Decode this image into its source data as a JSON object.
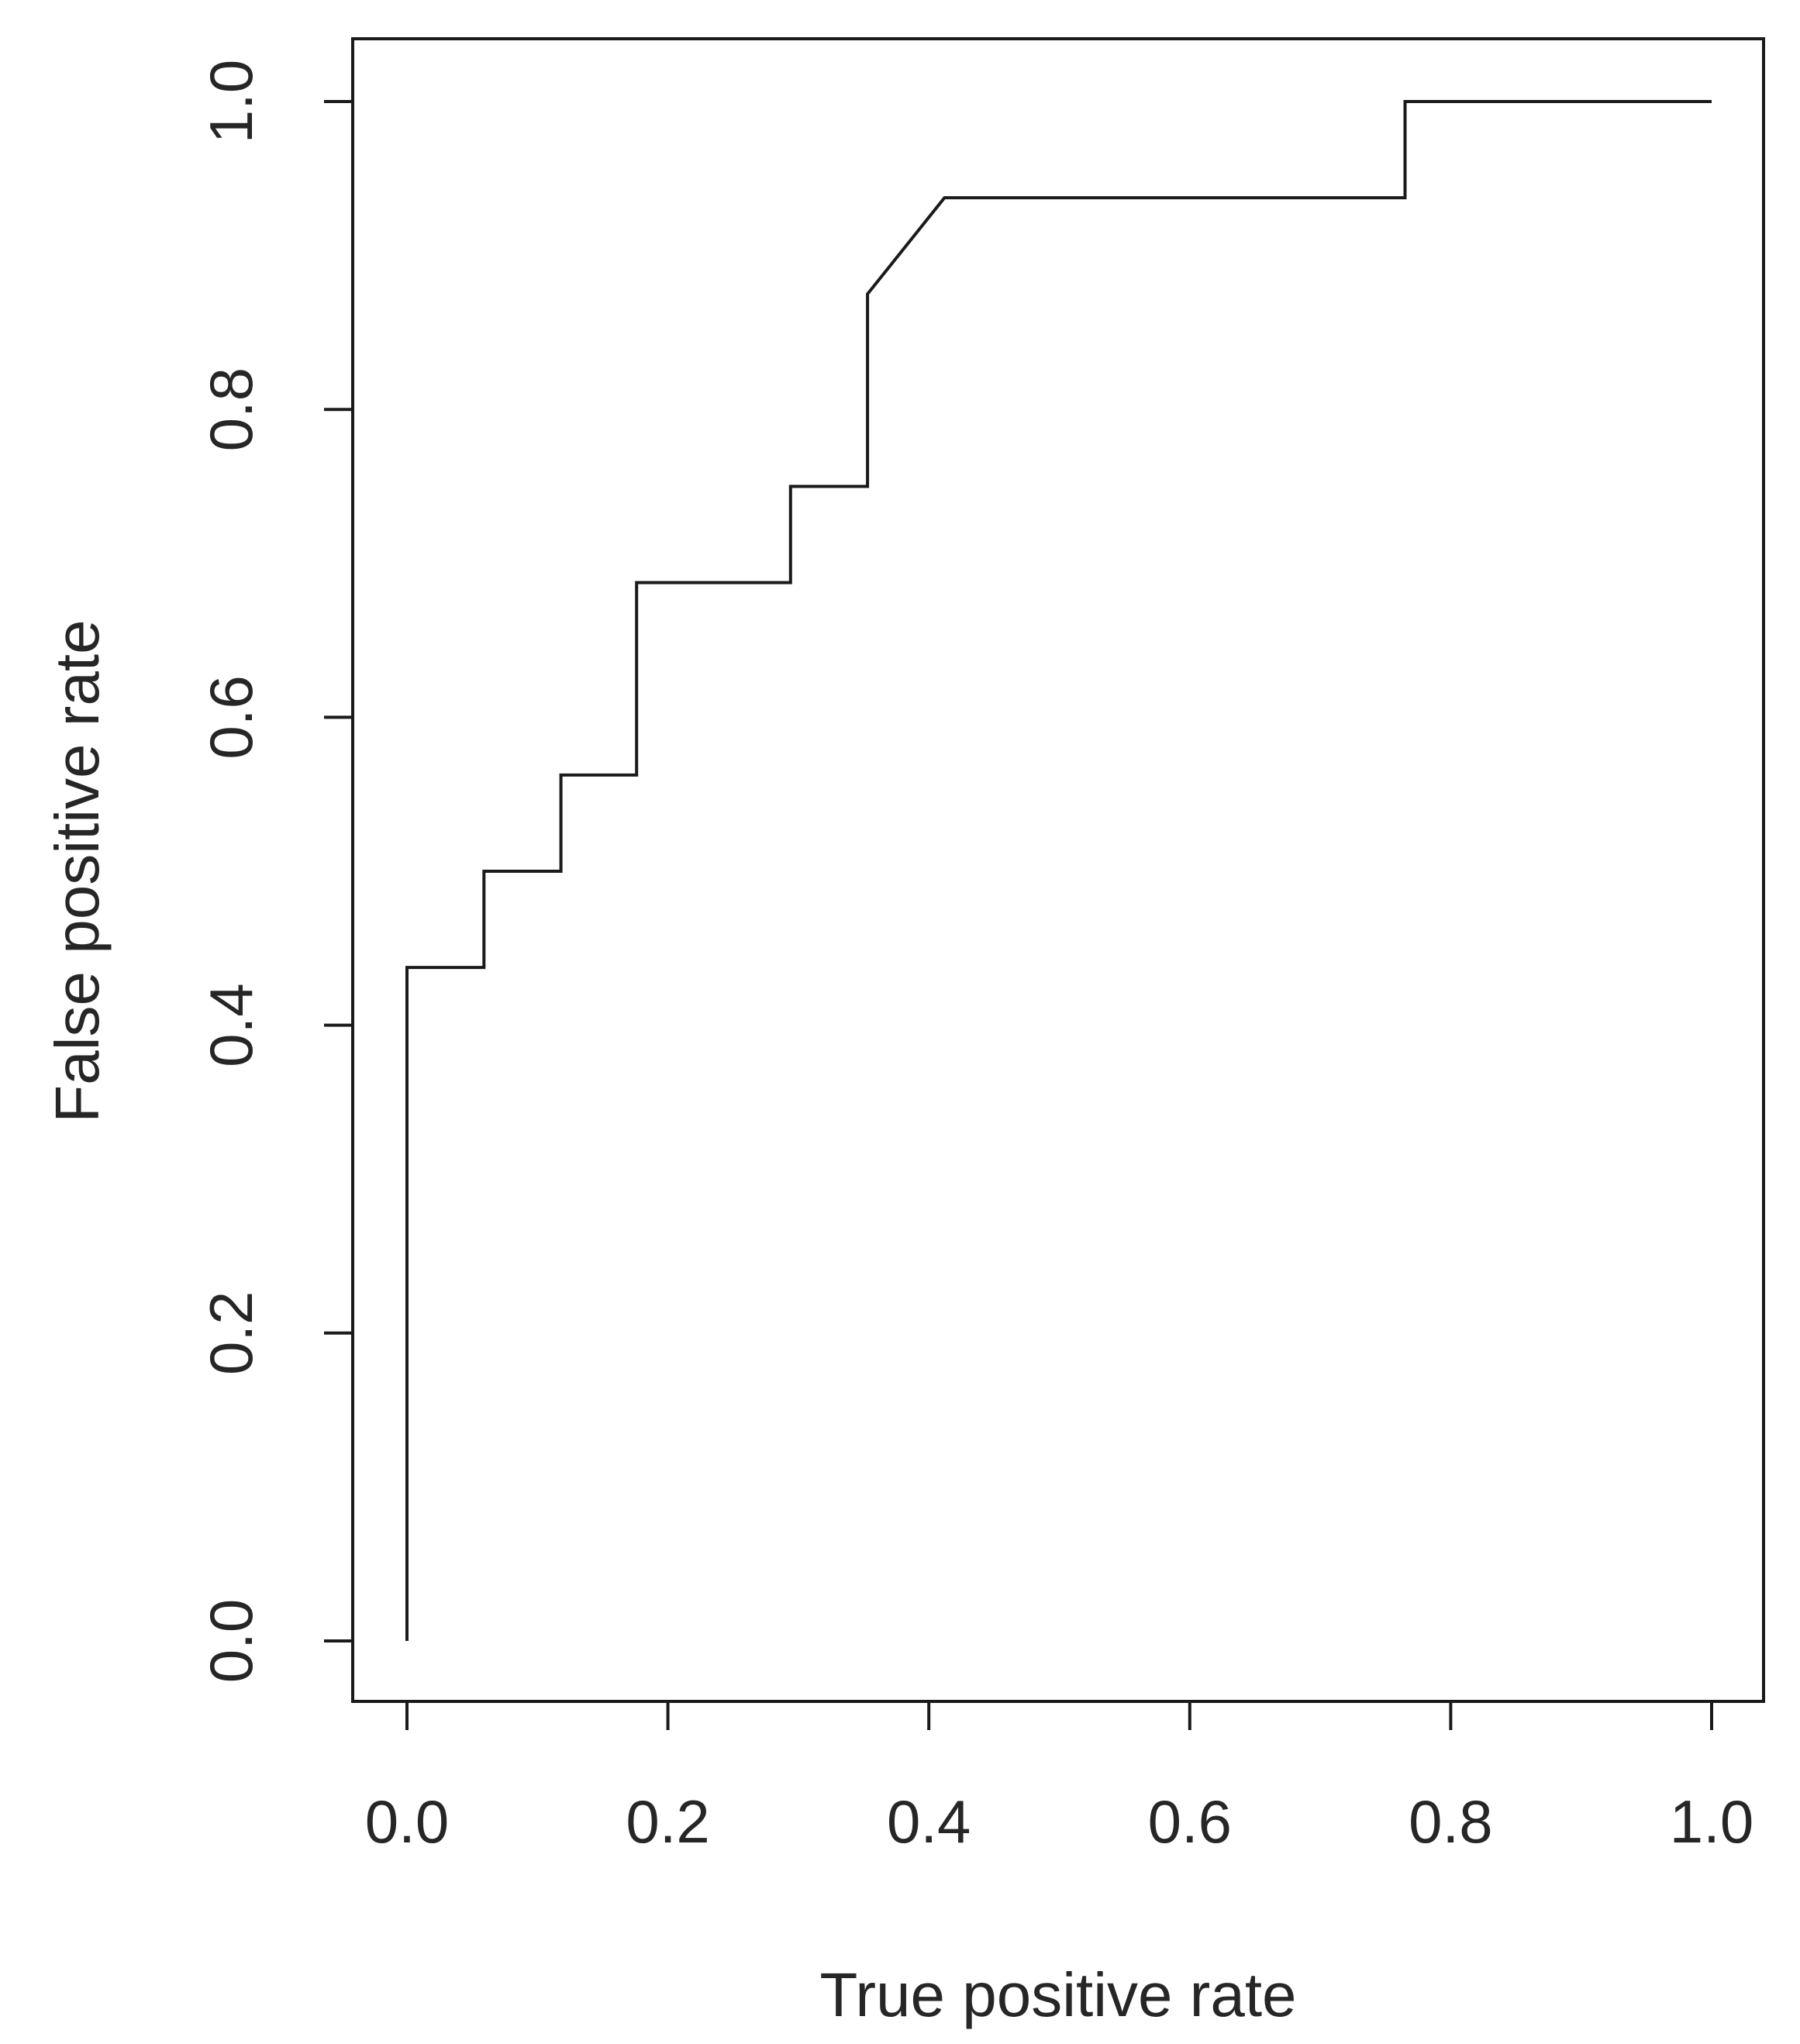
{
  "chart_data": {
    "type": "line",
    "title": "",
    "xlabel": "True positive rate",
    "ylabel": "False positive rate",
    "xlim": [
      0,
      1
    ],
    "ylim": [
      0,
      1
    ],
    "x_ticks": [
      "0.0",
      "0.2",
      "0.4",
      "0.6",
      "0.8",
      "1.0"
    ],
    "y_ticks": [
      "0.0",
      "0.2",
      "0.4",
      "0.6",
      "0.8",
      "1.0"
    ],
    "grid": false,
    "line_color": "#1a1a1a",
    "series": [
      {
        "points": [
          [
            0.0,
            0.0
          ],
          [
            0.0,
            0.4375
          ],
          [
            0.059,
            0.4375
          ],
          [
            0.059,
            0.5
          ],
          [
            0.118,
            0.5
          ],
          [
            0.118,
            0.5625
          ],
          [
            0.176,
            0.5625
          ],
          [
            0.176,
            0.6875
          ],
          [
            0.294,
            0.6875
          ],
          [
            0.294,
            0.75
          ],
          [
            0.353,
            0.75
          ],
          [
            0.353,
            0.875
          ],
          [
            0.412,
            0.9375
          ],
          [
            0.765,
            0.9375
          ],
          [
            0.765,
            1.0
          ],
          [
            1.0,
            1.0
          ]
        ]
      }
    ]
  }
}
